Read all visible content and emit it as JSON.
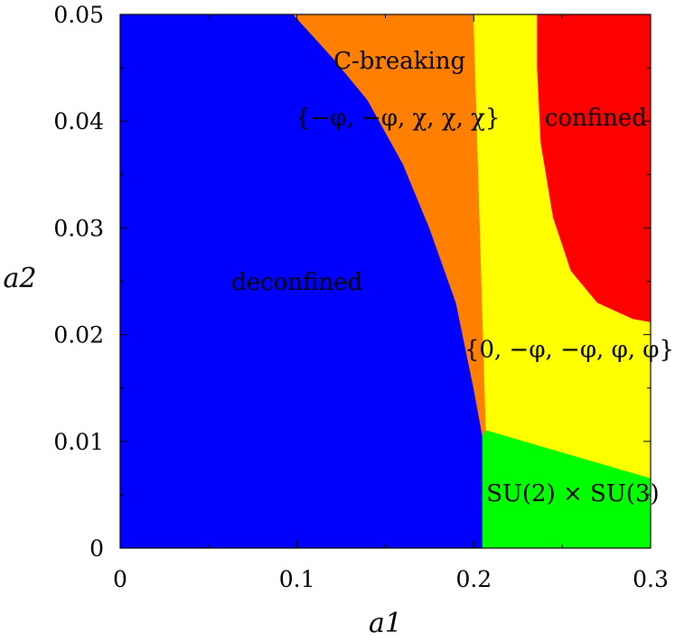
{
  "chart_data": {
    "type": "heatmap",
    "title": "",
    "xlabel": "a1",
    "ylabel": "a2",
    "xlim": [
      0,
      0.3
    ],
    "ylim": [
      0,
      0.05
    ],
    "xticks": [
      "0",
      "0.1",
      "0.2",
      "0.3"
    ],
    "yticks": [
      "0",
      "0.01",
      "0.02",
      "0.03",
      "0.04",
      "0.05"
    ],
    "grid": false,
    "regions": [
      {
        "label": "deconfined",
        "color": "#0000ff",
        "polygon": [
          [
            0,
            0
          ],
          [
            0.205,
            0
          ],
          [
            0.205,
            0.0105
          ],
          [
            0.2,
            0.015
          ],
          [
            0.19,
            0.023
          ],
          [
            0.175,
            0.03
          ],
          [
            0.16,
            0.036
          ],
          [
            0.14,
            0.042
          ],
          [
            0.12,
            0.046
          ],
          [
            0.098,
            0.05
          ],
          [
            0,
            0.05
          ]
        ]
      },
      {
        "label": "C-breaking {−φ,−φ,χ,χ,χ}",
        "color": "#ff7f00",
        "polygon": [
          [
            0.098,
            0.05
          ],
          [
            0.12,
            0.046
          ],
          [
            0.14,
            0.042
          ],
          [
            0.16,
            0.036
          ],
          [
            0.175,
            0.03
          ],
          [
            0.19,
            0.023
          ],
          [
            0.2,
            0.015
          ],
          [
            0.205,
            0.0105
          ],
          [
            0.207,
            0.011
          ],
          [
            0.2,
            0.05
          ]
        ]
      },
      {
        "label": "{0,−φ,−φ,φ,φ}",
        "color": "#ffff00",
        "polygon": [
          [
            0.2,
            0.05
          ],
          [
            0.207,
            0.011
          ],
          [
            0.3,
            0.0065
          ],
          [
            0.3,
            0.0212
          ],
          [
            0.29,
            0.0215
          ],
          [
            0.27,
            0.023
          ],
          [
            0.255,
            0.026
          ],
          [
            0.245,
            0.031
          ],
          [
            0.238,
            0.038
          ],
          [
            0.236,
            0.045
          ],
          [
            0.236,
            0.05
          ]
        ]
      },
      {
        "label": "confined",
        "color": "#ff0000",
        "polygon": [
          [
            0.236,
            0.05
          ],
          [
            0.236,
            0.045
          ],
          [
            0.238,
            0.038
          ],
          [
            0.245,
            0.031
          ],
          [
            0.255,
            0.026
          ],
          [
            0.27,
            0.023
          ],
          [
            0.29,
            0.0215
          ],
          [
            0.3,
            0.0212
          ],
          [
            0.3,
            0.05
          ]
        ]
      },
      {
        "label": "SU(2)×SU(3)",
        "color": "#00ff00",
        "polygon": [
          [
            0.205,
            0
          ],
          [
            0.3,
            0
          ],
          [
            0.3,
            0.0065
          ],
          [
            0.207,
            0.011
          ],
          [
            0.205,
            0.0105
          ]
        ]
      }
    ],
    "annotations": [
      {
        "text": "C-breaking",
        "x": 0.158,
        "y": 0.0455,
        "color": "#000000"
      },
      {
        "text": "{−φ, −φ, χ, χ, χ}",
        "x": 0.157,
        "y": 0.0402,
        "color": "#000000"
      },
      {
        "text": "confined",
        "x": 0.269,
        "y": 0.0402,
        "color": "#000000"
      },
      {
        "text": "deconfined",
        "x": 0.1,
        "y": 0.0248,
        "color": "#000000"
      },
      {
        "text": "{0, −φ, −φ, φ, φ}",
        "x": 0.254,
        "y": 0.0185,
        "color": "#000000"
      },
      {
        "text": "SU(2) × SU(3)",
        "x": 0.256,
        "y": 0.005,
        "color": "#000000"
      }
    ]
  }
}
